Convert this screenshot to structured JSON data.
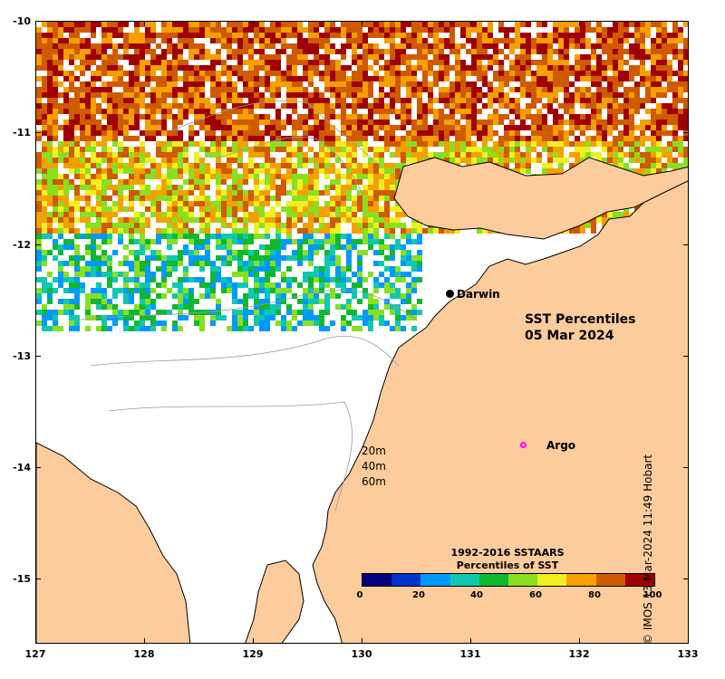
{
  "map": {
    "title_line1": "SST Percentiles",
    "title_line2": "05 Mar 2024",
    "credit": "© IMOS 13-Mar-2024 11:49 Hobart",
    "longitude_ticks": [
      "127",
      "128",
      "129",
      "130",
      "131",
      "132",
      "133"
    ],
    "latitude_ticks": [
      "-10",
      "-11",
      "-12",
      "-13",
      "-14",
      "-15"
    ],
    "land_color": "#fdcc9d",
    "no_data_color": "#ffffff"
  },
  "places": {
    "city": "Darwin",
    "float_label": "Argo",
    "float_marker_color": "#ff00ff"
  },
  "depth_contours": [
    "20m",
    "40m",
    "60m"
  ],
  "legend": {
    "title_line1": "1992-2016 SSTAARS",
    "title_line2": "Percentiles of SST",
    "ticks": [
      "0",
      "20",
      "40",
      "60",
      "80",
      "100"
    ],
    "colors": [
      "#00007f",
      "#0033cc",
      "#0099ff",
      "#10c8b0",
      "#10b830",
      "#88e020",
      "#f0f020",
      "#f4a000",
      "#d05a00",
      "#a00000"
    ]
  }
}
